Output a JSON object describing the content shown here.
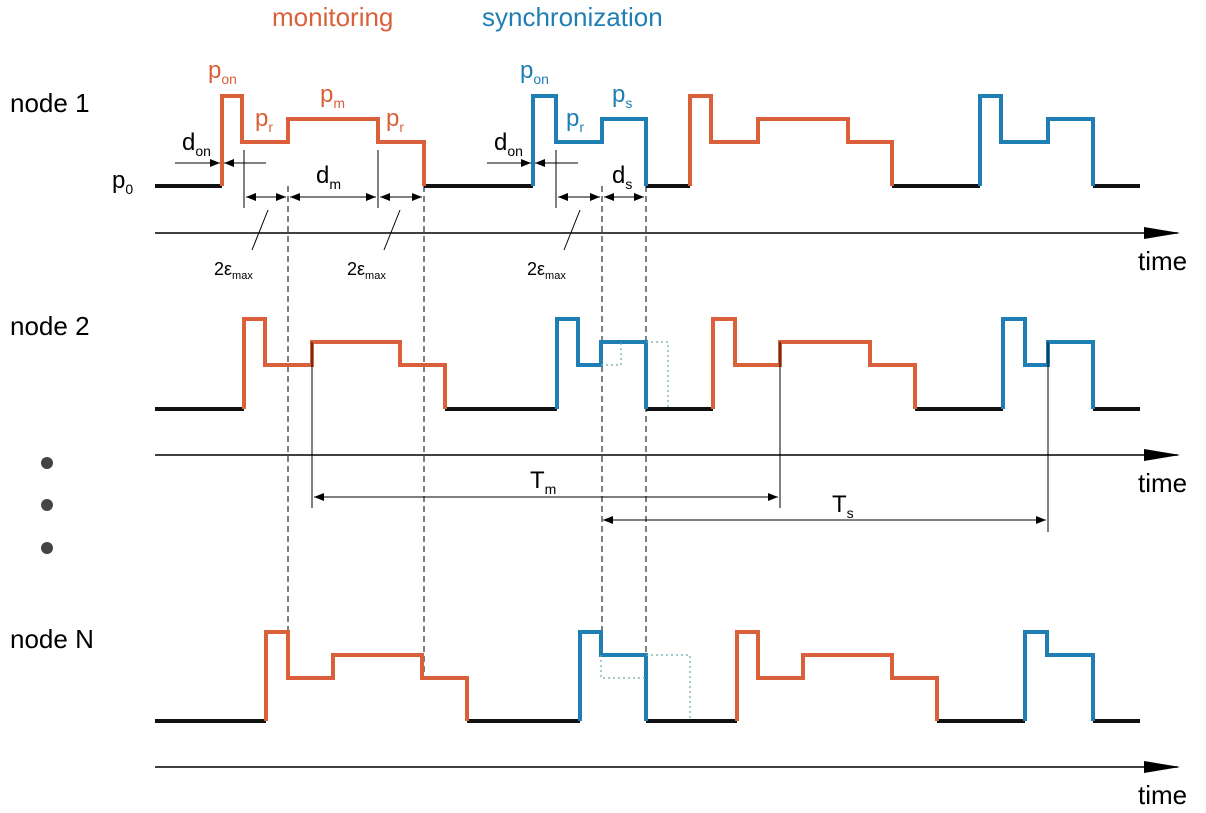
{
  "phases": {
    "monitoring": "monitoring",
    "synchronization": "synchronization"
  },
  "nodes": [
    {
      "label": "node 1"
    },
    {
      "label": "node 2"
    },
    {
      "label": "node N"
    }
  ],
  "axis_label": "time",
  "symbols": {
    "p_on": {
      "base": "p",
      "sub": "on"
    },
    "p_r": {
      "base": "p",
      "sub": "r"
    },
    "p_m": {
      "base": "p",
      "sub": "m"
    },
    "p_s": {
      "base": "p",
      "sub": "s"
    },
    "p_0": {
      "base": "p",
      "sub": "0"
    },
    "d_on": {
      "base": "d",
      "sub": "on"
    },
    "d_m": {
      "base": "d",
      "sub": "m"
    },
    "d_s": {
      "base": "d",
      "sub": "s"
    },
    "eps": {
      "base": "2ε",
      "sub": "max"
    },
    "T_m": {
      "base": "T",
      "sub": "m"
    },
    "T_s": {
      "base": "T",
      "sub": "s"
    }
  }
}
